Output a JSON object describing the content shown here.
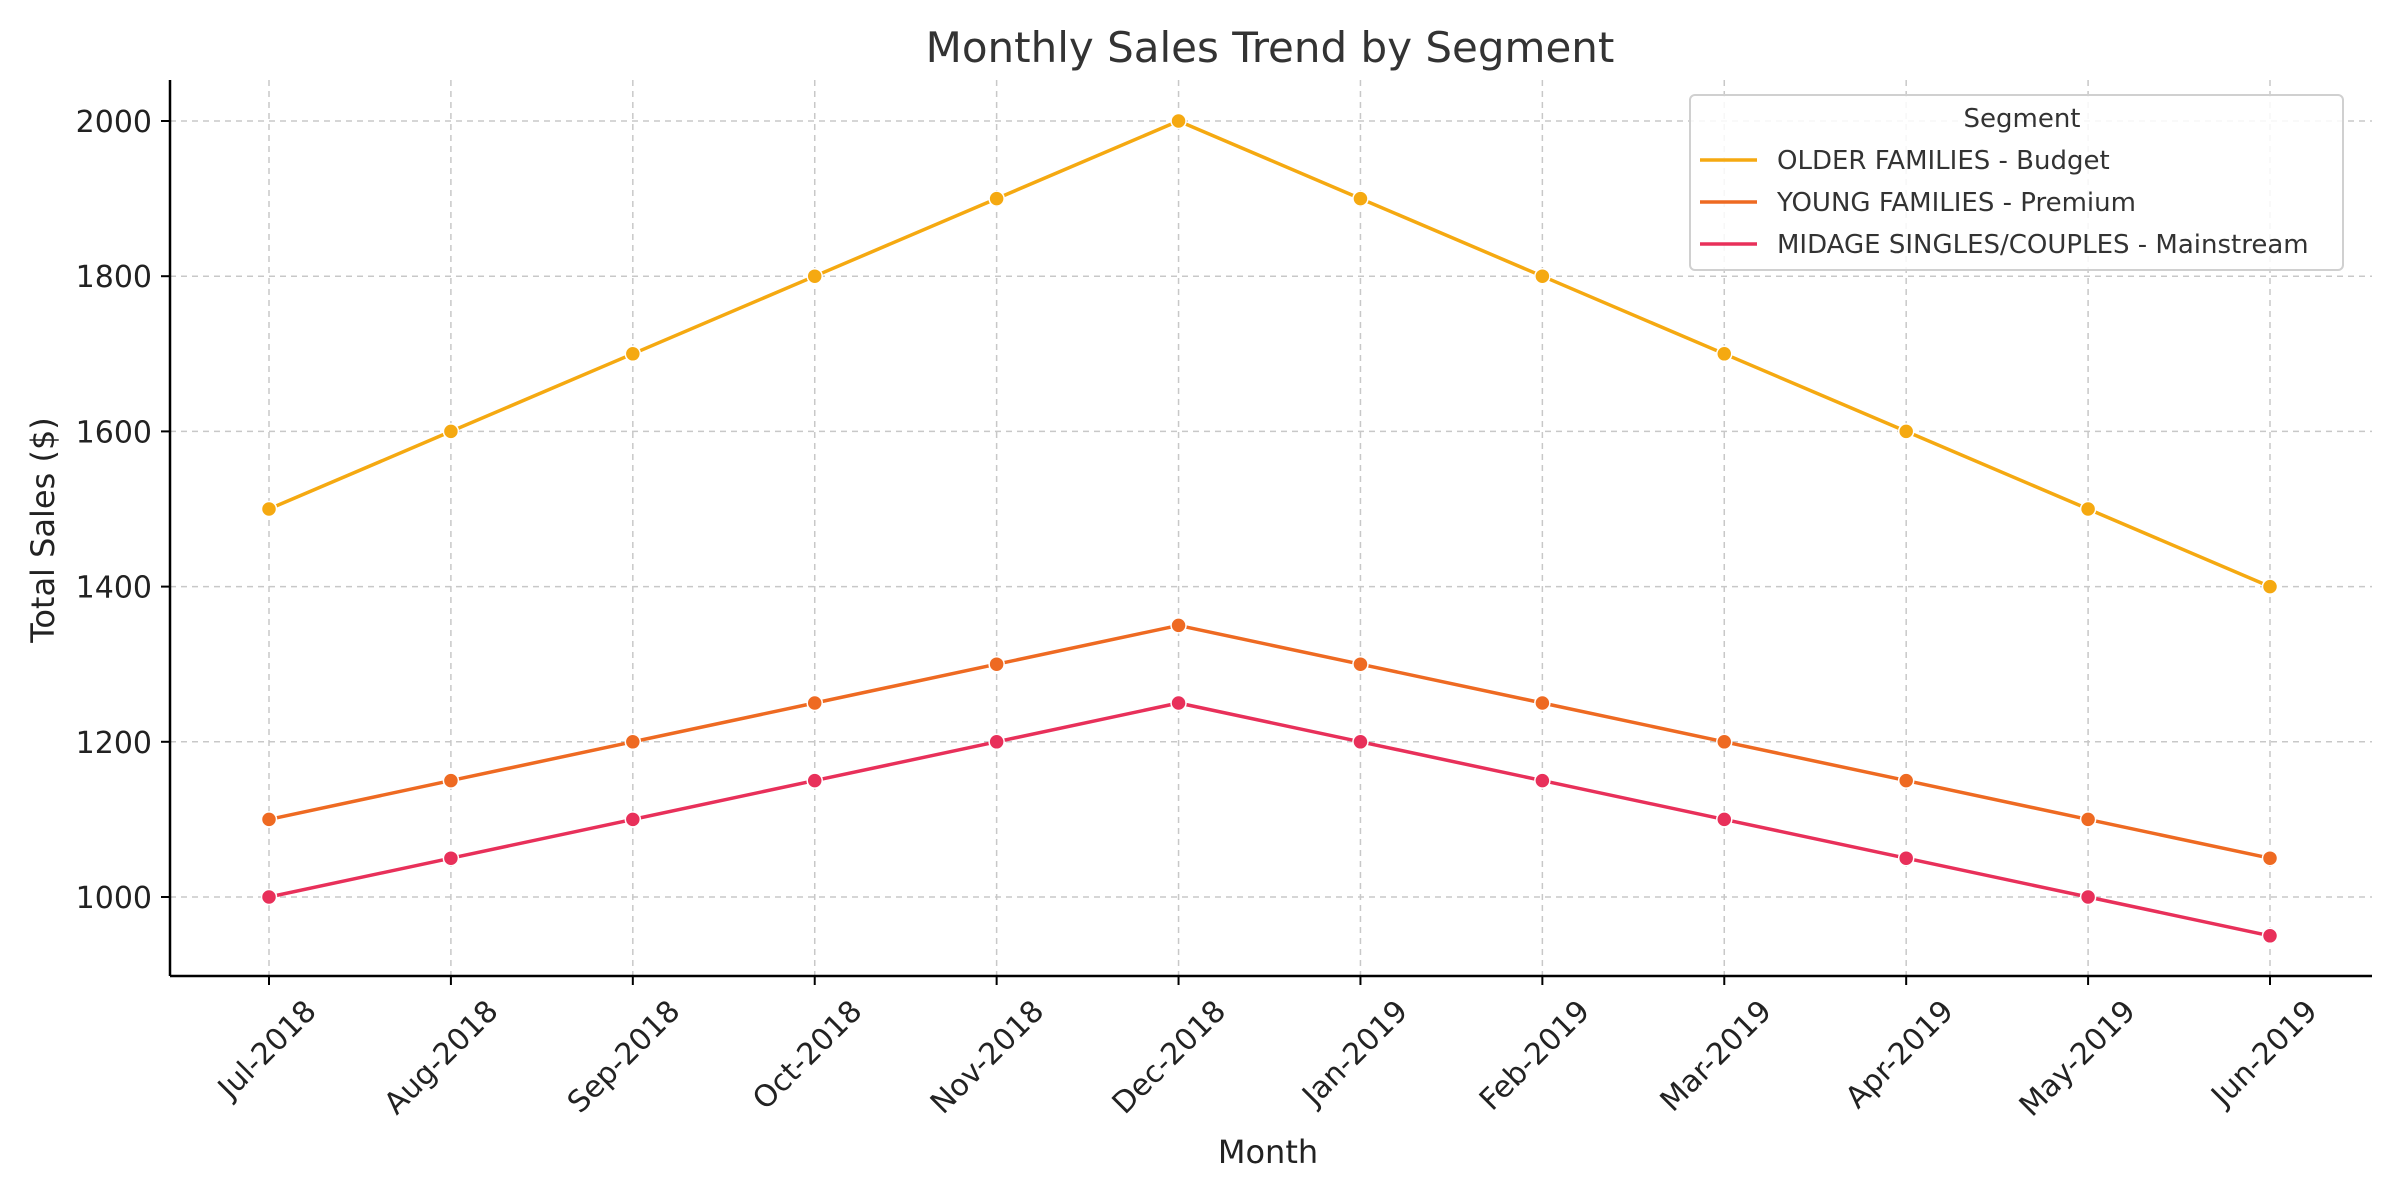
{
  "chart_data": {
    "type": "line",
    "title": "Monthly Sales Trend by Segment",
    "xlabel": "Month",
    "ylabel": "Total Sales ($)",
    "categories": [
      "Jul-2018",
      "Aug-2018",
      "Sep-2018",
      "Oct-2018",
      "Nov-2018",
      "Dec-2018",
      "Jan-2019",
      "Feb-2019",
      "Mar-2019",
      "Apr-2019",
      "May-2019",
      "Jun-2019"
    ],
    "ylim": [
      900,
      2050
    ],
    "yticks": [
      1000,
      1200,
      1400,
      1600,
      1800,
      2000
    ],
    "grid": true,
    "legend": {
      "title": "Segment",
      "placement": "top-right"
    },
    "series": [
      {
        "name": "OLDER FAMILIES - Budget",
        "color": "#F5A911",
        "values": [
          1500,
          1600,
          1700,
          1800,
          1900,
          2000,
          1900,
          1800,
          1700,
          1600,
          1500,
          1400
        ]
      },
      {
        "name": "YOUNG FAMILIES - Premium",
        "color": "#EE6A22",
        "values": [
          1100,
          1150,
          1200,
          1250,
          1300,
          1350,
          1300,
          1250,
          1200,
          1150,
          1100,
          1050
        ]
      },
      {
        "name": "MIDAGE SINGLES/COUPLES - Mainstream",
        "color": "#E8305A",
        "values": [
          1000,
          1050,
          1100,
          1150,
          1200,
          1250,
          1200,
          1150,
          1100,
          1050,
          1000,
          950
        ]
      }
    ]
  }
}
